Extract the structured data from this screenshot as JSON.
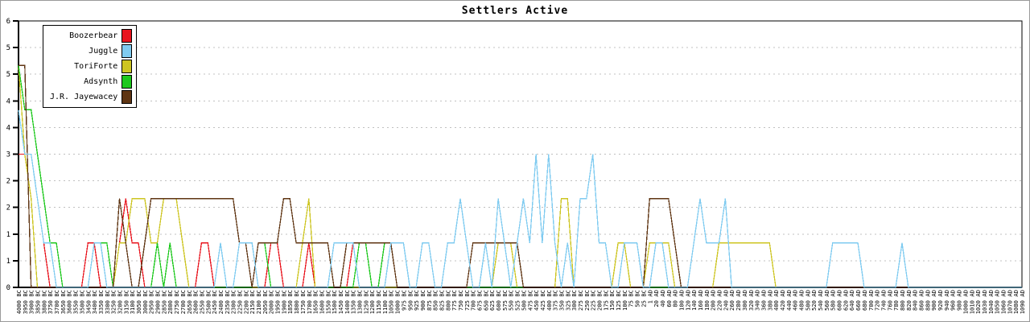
{
  "window": {
    "background": "#ffffff",
    "frame_border_color": "#9a9a9a"
  },
  "chart_data": {
    "type": "line",
    "title": "Settlers Active",
    "ylim": [
      0,
      6
    ],
    "grid": "horizontal-dashed",
    "grid_color": "#c0c0c0",
    "legend_position": "top-left",
    "y_tick_step": 0.6,
    "y_tick_labels_bottom_to_top": [
      "0",
      "1",
      "1",
      "2",
      "2",
      "3",
      "4",
      "4",
      "5",
      "5",
      "6"
    ],
    "x_labels": [
      "4000 BC",
      "3950 BC",
      "3900 BC",
      "3850 BC",
      "3800 BC",
      "3750 BC",
      "3700 BC",
      "3650 BC",
      "3600 BC",
      "3550 BC",
      "3500 BC",
      "3450 BC",
      "3400 BC",
      "3350 BC",
      "3300 BC",
      "3250 BC",
      "3200 BC",
      "3150 BC",
      "3100 BC",
      "3050 BC",
      "3000 BC",
      "2950 BC",
      "2900 BC",
      "2850 BC",
      "2800 BC",
      "2750 BC",
      "2700 BC",
      "2650 BC",
      "2600 BC",
      "2550 BC",
      "2500 BC",
      "2450 BC",
      "2400 BC",
      "2350 BC",
      "2300 BC",
      "2250 BC",
      "2200 BC",
      "2150 BC",
      "2100 BC",
      "2050 BC",
      "2000 BC",
      "1950 BC",
      "1900 BC",
      "1850 BC",
      "1800 BC",
      "1750 BC",
      "1700 BC",
      "1650 BC",
      "1600 BC",
      "1550 BC",
      "1500 BC",
      "1450 BC",
      "1400 BC",
      "1350 BC",
      "1300 BC",
      "1250 BC",
      "1200 BC",
      "1150 BC",
      "1100 BC",
      "1050 BC",
      "1000 BC",
      "975 BC",
      "950 BC",
      "925 BC",
      "900 BC",
      "875 BC",
      "850 BC",
      "825 BC",
      "800 BC",
      "775 BC",
      "750 BC",
      "725 BC",
      "700 BC",
      "675 BC",
      "650 BC",
      "625 BC",
      "600 BC",
      "575 BC",
      "550 BC",
      "525 BC",
      "500 BC",
      "475 BC",
      "450 BC",
      "425 BC",
      "400 BC",
      "375 BC",
      "350 BC",
      "325 BC",
      "300 BC",
      "275 BC",
      "250 BC",
      "225 BC",
      "200 BC",
      "175 BC",
      "150 BC",
      "125 BC",
      "100 BC",
      "75 BC",
      "50 BC",
      "25 BC",
      "1 AD",
      "20 AD",
      "40 AD",
      "60 AD",
      "80 AD",
      "100 AD",
      "120 AD",
      "140 AD",
      "160 AD",
      "180 AD",
      "200 AD",
      "220 AD",
      "240 AD",
      "260 AD",
      "280 AD",
      "300 AD",
      "320 AD",
      "340 AD",
      "360 AD",
      "380 AD",
      "400 AD",
      "420 AD",
      "440 AD",
      "460 AD",
      "480 AD",
      "500 AD",
      "520 AD",
      "540 AD",
      "560 AD",
      "580 AD",
      "600 AD",
      "620 AD",
      "640 AD",
      "660 AD",
      "680 AD",
      "700 AD",
      "720 AD",
      "740 AD",
      "760 AD",
      "780 AD",
      "800 AD",
      "820 AD",
      "840 AD",
      "860 AD",
      "880 AD",
      "900 AD",
      "920 AD",
      "940 AD",
      "960 AD",
      "980 AD",
      "1000 AD",
      "1010 AD",
      "1020 AD",
      "1030 AD",
      "1040 AD",
      "1050 AD",
      "1060 AD",
      "1070 AD",
      "1080 AD",
      "1090 AD"
    ],
    "series": [
      {
        "name": "Boozerbear",
        "color": "#e8141e",
        "values": [
          3,
          3,
          3,
          2,
          1,
          0,
          0,
          0,
          0,
          0,
          0,
          1,
          1,
          0,
          0,
          0,
          1,
          2,
          1,
          1,
          0,
          0,
          0,
          0,
          0,
          0,
          0,
          0,
          0,
          1,
          1,
          0,
          0,
          0,
          0,
          0,
          0,
          0,
          0,
          0,
          1,
          1,
          0,
          0,
          0,
          0,
          1,
          0,
          0,
          0,
          0,
          0,
          0,
          1,
          0,
          0,
          0,
          0,
          0,
          0,
          0,
          0,
          0,
          0,
          0,
          0,
          0,
          0,
          0,
          0,
          0,
          0,
          0,
          0,
          0,
          0,
          0,
          0,
          0,
          0,
          0,
          0,
          0,
          0,
          0,
          0,
          0,
          0,
          0,
          0,
          0,
          0,
          0,
          0,
          0,
          0,
          0,
          0,
          0,
          0,
          0,
          0,
          0,
          0,
          0,
          0,
          0,
          0,
          0,
          0,
          0,
          0,
          0,
          0,
          0,
          0,
          0,
          0,
          0,
          0,
          0,
          0,
          0,
          0,
          0,
          0,
          0,
          0,
          0,
          0,
          0,
          0,
          0,
          0,
          0,
          0,
          0,
          0,
          0,
          0,
          0,
          0,
          0,
          0,
          0,
          0,
          0,
          0,
          0,
          0,
          0,
          0,
          0,
          0,
          0,
          0,
          0,
          0,
          0,
          0
        ]
      },
      {
        "name": "Juggle",
        "color": "#7fcbf0",
        "values": [
          4,
          3,
          3,
          2,
          1,
          1,
          0,
          0,
          0,
          0,
          0,
          0,
          1,
          1,
          0,
          0,
          0,
          0,
          0,
          0,
          0,
          0,
          0,
          0,
          0,
          0,
          0,
          0,
          0,
          0,
          0,
          0,
          1,
          0,
          0,
          1,
          1,
          1,
          0,
          0,
          0,
          0,
          0,
          0,
          0,
          0,
          0,
          0,
          0,
          0,
          1,
          1,
          1,
          1,
          0,
          0,
          0,
          0,
          0,
          1,
          1,
          1,
          0,
          0,
          1,
          1,
          0,
          0,
          1,
          1,
          2,
          1,
          0,
          0,
          1,
          0,
          2,
          1,
          0,
          1,
          2,
          1,
          3,
          1,
          3,
          1,
          0,
          1,
          0,
          2,
          2,
          3,
          1,
          1,
          0,
          0,
          1,
          1,
          1,
          0,
          0,
          1,
          1,
          0,
          0,
          0,
          0,
          1,
          2,
          1,
          1,
          1,
          2,
          0,
          0,
          0,
          0,
          0,
          0,
          0,
          0,
          0,
          0,
          0,
          0,
          0,
          0,
          0,
          0,
          1,
          1,
          1,
          1,
          1,
          0,
          0,
          0,
          0,
          0,
          0,
          1,
          0,
          0,
          0,
          0,
          0,
          0,
          0,
          0,
          0,
          0,
          0,
          0,
          0,
          0,
          0,
          0,
          0,
          0,
          0
        ]
      },
      {
        "name": "ToriForte",
        "color": "#cdc522",
        "values": [
          5,
          3,
          2,
          0,
          0,
          0,
          0,
          0,
          0,
          0,
          0,
          0,
          0,
          0,
          0,
          0,
          1,
          1,
          2,
          2,
          2,
          1,
          1,
          2,
          2,
          2,
          1,
          0,
          0,
          0,
          0,
          0,
          0,
          0,
          0,
          0,
          0,
          0,
          0,
          0,
          0,
          0,
          0,
          0,
          0,
          1,
          2,
          0,
          0,
          0,
          0,
          0,
          0,
          0,
          0,
          0,
          0,
          0,
          0,
          0,
          0,
          0,
          0,
          0,
          0,
          0,
          0,
          0,
          0,
          0,
          0,
          0,
          0,
          0,
          0,
          0,
          1,
          1,
          1,
          0,
          0,
          0,
          0,
          0,
          0,
          0,
          2,
          2,
          0,
          0,
          0,
          0,
          0,
          0,
          0,
          1,
          1,
          0,
          0,
          0,
          1,
          1,
          1,
          1,
          0,
          0,
          0,
          0,
          0,
          0,
          0,
          1,
          1,
          1,
          1,
          1,
          1,
          1,
          1,
          1,
          0,
          0,
          0,
          0,
          0,
          0,
          0,
          0,
          0,
          0,
          0,
          0,
          0,
          0,
          0,
          0,
          0,
          0,
          0,
          0,
          0,
          0,
          0,
          0,
          0,
          0,
          0,
          0,
          0,
          0,
          0,
          0,
          0,
          0,
          0,
          0,
          0,
          0,
          0,
          0
        ]
      },
      {
        "name": "Adsynth",
        "color": "#1dc81d",
        "values": [
          5,
          4,
          4,
          3,
          2,
          1,
          1,
          0,
          0,
          0,
          0,
          0,
          1,
          1,
          1,
          0,
          0,
          0,
          0,
          0,
          0,
          0,
          1,
          0,
          1,
          0,
          0,
          0,
          0,
          0,
          0,
          0,
          0,
          0,
          0,
          0,
          0,
          0,
          1,
          1,
          0,
          0,
          0,
          0,
          0,
          0,
          0,
          0,
          0,
          0,
          0,
          0,
          0,
          0,
          1,
          1,
          0,
          0,
          1,
          1,
          0,
          0,
          0,
          0,
          0,
          0,
          0,
          0,
          0,
          0,
          0,
          0,
          0,
          0,
          0,
          0,
          0,
          0,
          0,
          0,
          0,
          0,
          0,
          0,
          0,
          0,
          0,
          0,
          0,
          0,
          0,
          0,
          0,
          0,
          0,
          0,
          0,
          0,
          0,
          0,
          0,
          0,
          0,
          0,
          0,
          0,
          0,
          0,
          0,
          0,
          0,
          0,
          0,
          0,
          0,
          0,
          0,
          0,
          0,
          0,
          0,
          0,
          0,
          0,
          0,
          0,
          0,
          0,
          0,
          0,
          0,
          0,
          0,
          0,
          0,
          0,
          0,
          0,
          0,
          0,
          0,
          0,
          0,
          0,
          0,
          0,
          0,
          0,
          0,
          0,
          0,
          0,
          0,
          0,
          0,
          0,
          0,
          0,
          0,
          0
        ]
      },
      {
        "name": "J.R. Jayewacey",
        "color": "#5f3513",
        "values": [
          5,
          5,
          0,
          0,
          0,
          0,
          0,
          0,
          0,
          0,
          0,
          0,
          0,
          0,
          0,
          0,
          2,
          1,
          0,
          0,
          1,
          2,
          2,
          2,
          2,
          2,
          2,
          2,
          2,
          2,
          2,
          2,
          2,
          2,
          2,
          1,
          1,
          0,
          1,
          1,
          1,
          1,
          2,
          2,
          1,
          1,
          1,
          1,
          1,
          1,
          0,
          0,
          1,
          1,
          1,
          1,
          1,
          1,
          1,
          1,
          0,
          0,
          0,
          0,
          0,
          0,
          0,
          0,
          0,
          0,
          0,
          0,
          1,
          1,
          1,
          1,
          1,
          1,
          1,
          1,
          0,
          0,
          0,
          0,
          0,
          0,
          0,
          0,
          0,
          0,
          0,
          0,
          0,
          0,
          0,
          0,
          0,
          0,
          0,
          0,
          2,
          2,
          2,
          2,
          1,
          0,
          0,
          0,
          0,
          0,
          0,
          0,
          0,
          0,
          0,
          0,
          0,
          0,
          0,
          0,
          0,
          0,
          0,
          0,
          0,
          0,
          0,
          0,
          0,
          0,
          0,
          0,
          0,
          0,
          0,
          0,
          0,
          0,
          0,
          0,
          0,
          0,
          0,
          0,
          0,
          0,
          0,
          0,
          0,
          0,
          0,
          0,
          0,
          0,
          0,
          0,
          0,
          0,
          0,
          0
        ]
      }
    ]
  }
}
